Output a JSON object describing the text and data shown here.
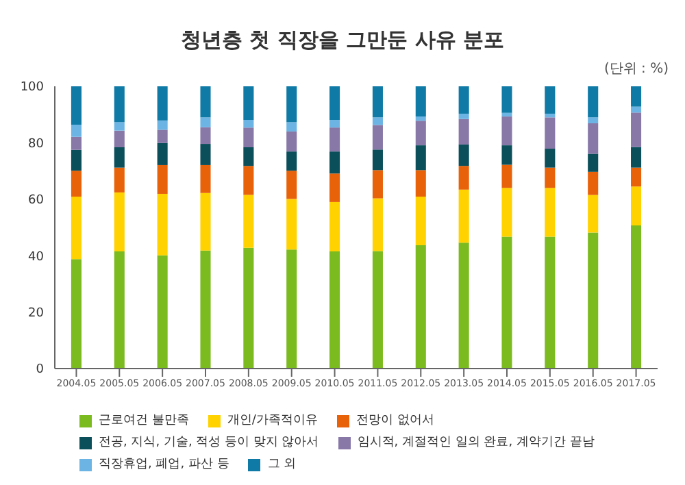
{
  "chart_data": {
    "type": "bar",
    "title": "청년층 첫 직장을 그만둔 사유 분포",
    "annotations": [
      "(단위 : %)"
    ],
    "categories": [
      "2004.05",
      "2005.05",
      "2006.05",
      "2007.05",
      "2008.05",
      "2009.05",
      "2010.05",
      "2011.05",
      "2012.05",
      "2013.05",
      "2014.05",
      "2015.05",
      "2016.05",
      "2017.05"
    ],
    "stacked": true,
    "ylim": [
      0,
      100
    ],
    "yticks": [
      0,
      20,
      40,
      60,
      80,
      100
    ],
    "grid": false,
    "legend": "bottom",
    "series": [
      {
        "name": "근로여건 불만족",
        "color": "#7cbb1f",
        "values": [
          38.8,
          41.5,
          40.1,
          41.8,
          42.8,
          42.2,
          41.5,
          41.6,
          43.7,
          44.6,
          46.7,
          46.7,
          48.2,
          50.7
        ]
      },
      {
        "name": "개인/가족적이유",
        "color": "#ffd200",
        "values": [
          22.1,
          20.9,
          21.8,
          20.4,
          18.7,
          17.9,
          17.5,
          18.7,
          17.2,
          18.8,
          17.3,
          17.3,
          13.3,
          13.8
        ]
      },
      {
        "name": "전망이 없어서",
        "color": "#e8620a",
        "values": [
          9.2,
          8.8,
          10.2,
          9.9,
          10.3,
          10.0,
          10.1,
          10.0,
          9.4,
          8.4,
          8.2,
          7.2,
          8.2,
          6.7
        ]
      },
      {
        "name": "전공, 지식, 기술, 적성 등이 맞지 않아서",
        "color": "#0a4f5a",
        "values": [
          7.4,
          7.2,
          7.8,
          7.5,
          6.6,
          6.8,
          7.8,
          7.3,
          8.8,
          7.6,
          6.9,
          6.7,
          6.4,
          7.3
        ]
      },
      {
        "name": "임시적, 계절적인 일의 완료, 계약기간 끝남",
        "color": "#8878a8",
        "values": [
          4.6,
          5.9,
          4.7,
          5.9,
          7.0,
          7.1,
          8.5,
          8.7,
          8.7,
          9.0,
          10.2,
          11.1,
          10.8,
          12.2
        ]
      },
      {
        "name": "직장휴업, 폐업, 파산 등",
        "color": "#6cb4e4",
        "values": [
          4.3,
          3.0,
          3.3,
          3.5,
          2.7,
          3.3,
          2.7,
          2.7,
          1.5,
          1.9,
          1.3,
          1.3,
          2.1,
          2.1
        ]
      },
      {
        "name": "그 외",
        "color": "#0f7aa6",
        "values": [
          13.6,
          12.7,
          12.1,
          11.0,
          11.9,
          12.7,
          11.9,
          11.0,
          10.7,
          9.7,
          9.4,
          9.7,
          11.0,
          7.2
        ]
      }
    ]
  }
}
